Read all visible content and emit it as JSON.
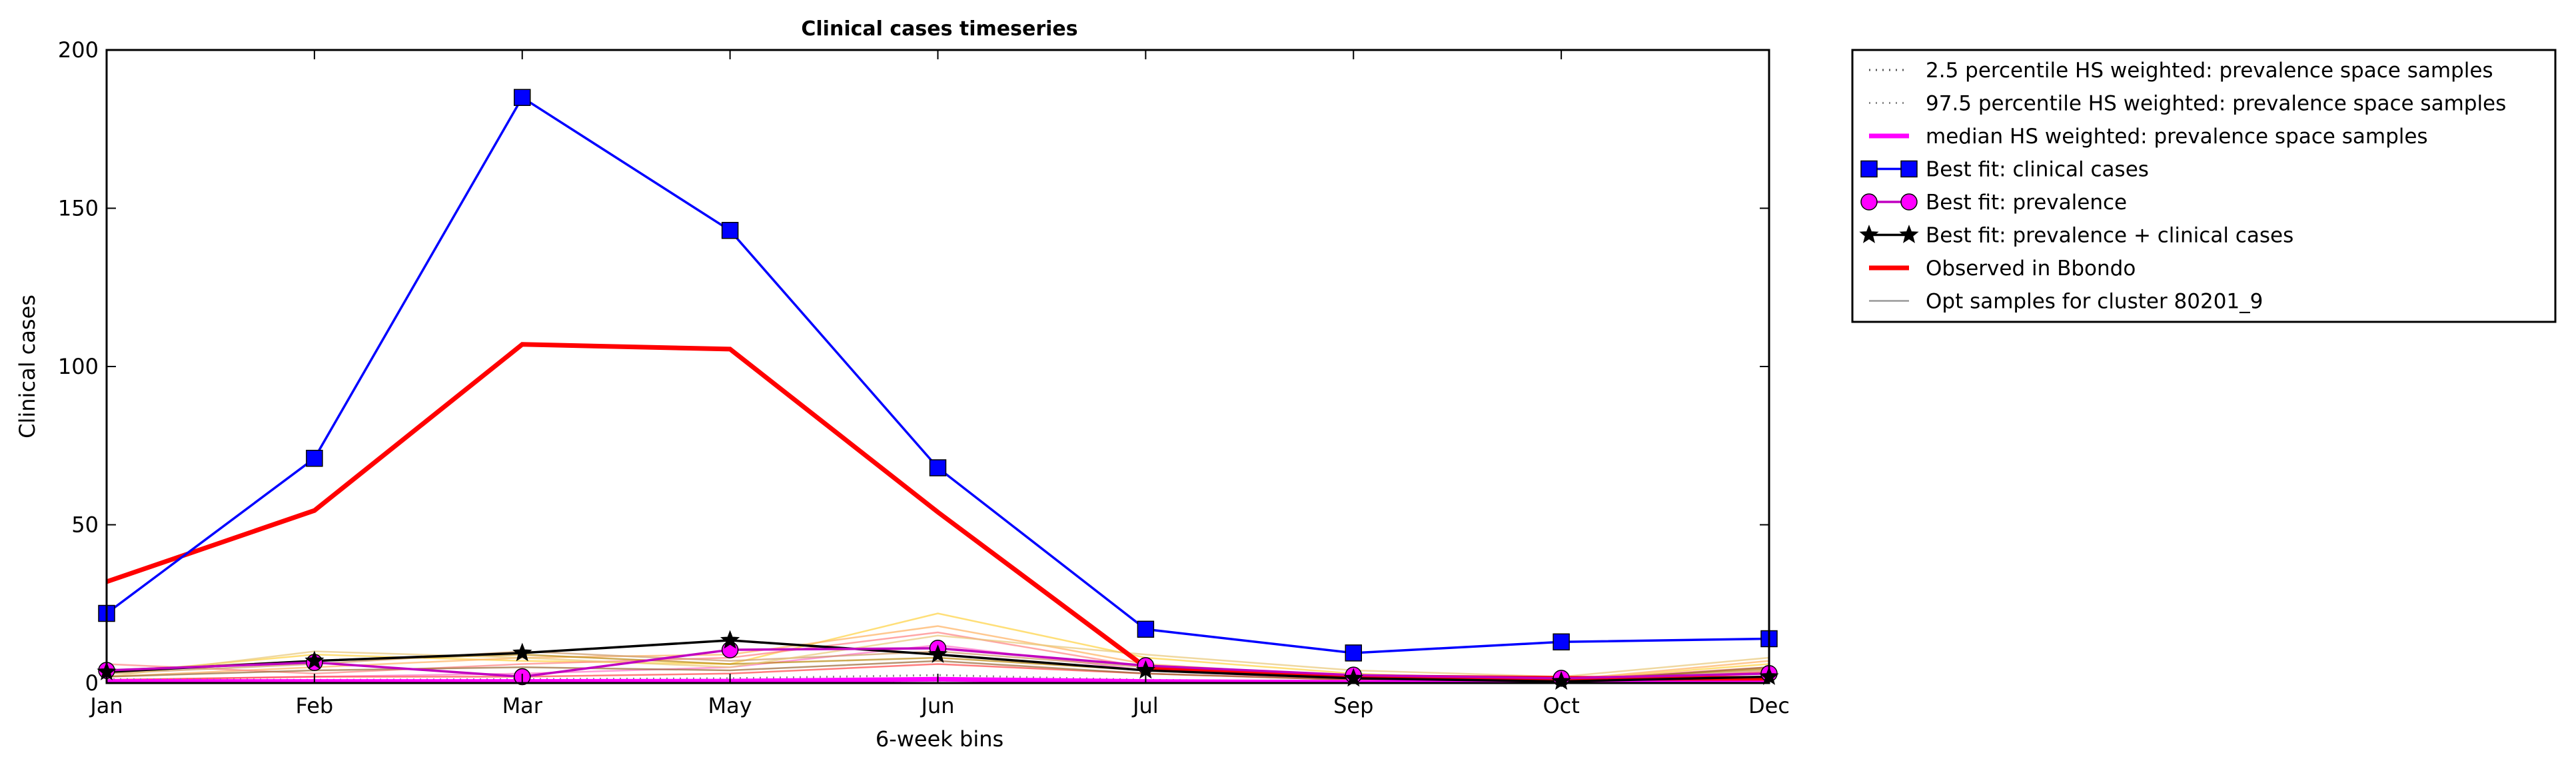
{
  "chart_data": {
    "type": "line",
    "title": "Clinical cases timeseries",
    "xlabel": "6-week bins",
    "ylabel": "Clinical cases",
    "categories": [
      "Jan",
      "Feb",
      "Mar",
      "May",
      "Jun",
      "Jul",
      "Sep",
      "Oct",
      "Dec"
    ],
    "ylim": [
      0,
      200
    ],
    "yticks": [
      0,
      50,
      100,
      150,
      200
    ],
    "grid": false,
    "legend_position": "outside-right-top",
    "legend": [
      "2.5 percentile HS weighted: prevalence space samples",
      "97.5 percentile HS weighted: prevalence space samples",
      "median HS weighted: prevalence space samples",
      "Best fit: clinical cases",
      "Best fit: prevalence",
      "Best fit: prevalence + clinical cases",
      "Observed in Bbondo",
      "Opt samples for cluster 80201_9"
    ],
    "series": [
      {
        "name": "2.5 percentile HS weighted: prevalence space samples",
        "style": "dotted",
        "color": "#555555",
        "marker": "none",
        "values": [
          0.3,
          0.3,
          0.3,
          0.3,
          0.8,
          0.3,
          0.1,
          0.1,
          0.3
        ]
      },
      {
        "name": "97.5 percentile HS weighted: prevalence space samples",
        "style": "dotted",
        "color": "#888888",
        "marker": "none",
        "values": [
          1.2,
          1.0,
          1.2,
          1.5,
          2.5,
          1.0,
          0.4,
          0.3,
          1.0
        ]
      },
      {
        "name": "median HS weighted: prevalence space samples",
        "style": "solid",
        "color": "#ff00ff",
        "marker": "none",
        "values": [
          0.5,
          0.5,
          0.5,
          0.6,
          1.2,
          0.5,
          0.2,
          0.2,
          0.5
        ]
      },
      {
        "name": "Best fit: clinical cases",
        "style": "solid",
        "color": "#0000ff",
        "marker": "square",
        "values": [
          22,
          71,
          185,
          143,
          68,
          17,
          9.5,
          13,
          14
        ]
      },
      {
        "name": "Best fit: prevalence",
        "style": "solid",
        "color": "#c000c0",
        "marker": "circle",
        "values": [
          4,
          6.5,
          2,
          10.5,
          11,
          5.5,
          2.5,
          1.5,
          3
        ]
      },
      {
        "name": "Best fit: prevalence + clinical cases",
        "style": "solid",
        "color": "#000000",
        "marker": "star",
        "values": [
          3.5,
          7,
          9.5,
          13.5,
          9,
          4,
          1.5,
          0.5,
          2
        ]
      },
      {
        "name": "Observed in Bbondo",
        "style": "solid",
        "color": "#ff0000",
        "marker": "none",
        "values": [
          32,
          54.5,
          107,
          105.5,
          54,
          5,
          2,
          1.5,
          1.5
        ]
      }
    ],
    "opt_samples": {
      "name": "Opt samples for cluster 80201_9",
      "lines": [
        {
          "color": "#ffd23f",
          "values": [
            3,
            9,
            7,
            6,
            22,
            8,
            3,
            1,
            6
          ]
        },
        {
          "color": "#ffb060",
          "values": [
            2,
            5,
            8,
            9,
            18,
            6,
            2,
            1,
            7
          ]
        },
        {
          "color": "#ff8080",
          "values": [
            6,
            3,
            6,
            8,
            16,
            5,
            1.5,
            1,
            5
          ]
        },
        {
          "color": "#ff6ec7",
          "values": [
            1,
            2,
            3,
            5,
            12,
            4,
            1,
            0.5,
            3
          ]
        },
        {
          "color": "#cc9966",
          "values": [
            3,
            6,
            10,
            7,
            10,
            5,
            2,
            1,
            4
          ]
        },
        {
          "color": "#b8860b",
          "values": [
            4,
            7,
            9,
            6,
            8,
            4,
            1.5,
            1,
            4.5
          ]
        },
        {
          "color": "#e8c878",
          "values": [
            2,
            10,
            8,
            5,
            15,
            9,
            4,
            2,
            8
          ]
        },
        {
          "color": "#ff4444",
          "values": [
            1,
            2,
            2,
            3,
            6,
            3,
            1,
            0.5,
            3.5
          ]
        },
        {
          "color": "#996633",
          "values": [
            2,
            4,
            5,
            4,
            7,
            3,
            1,
            0.5,
            5
          ]
        }
      ]
    }
  }
}
